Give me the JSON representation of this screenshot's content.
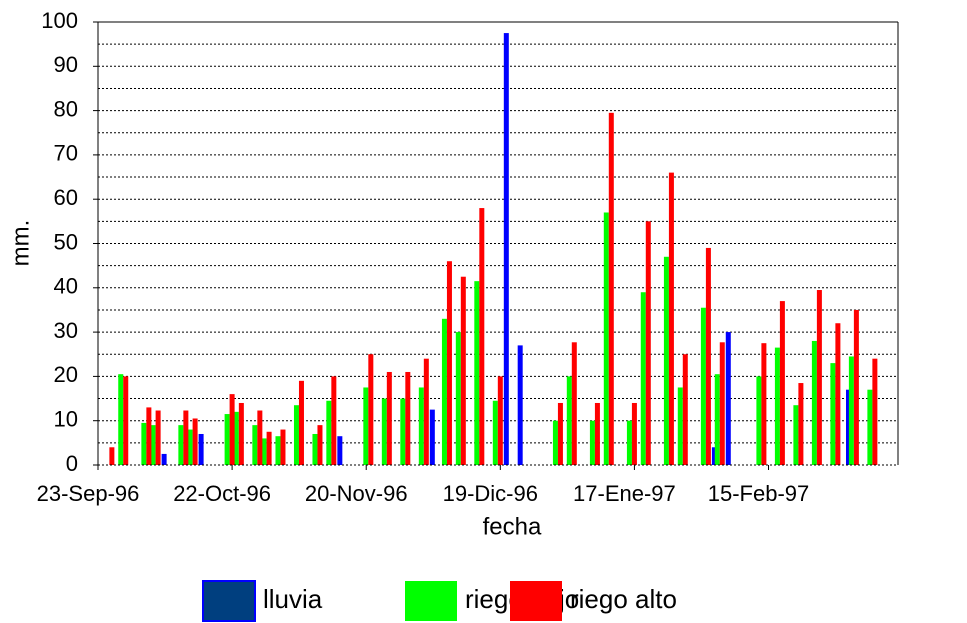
{
  "chart_data": {
    "type": "bar",
    "xlabel": "fecha",
    "ylabel": "mm.",
    "x": [
      "1996-09-26",
      "1996-09-29",
      "1996-10-04",
      "1996-10-06",
      "1996-10-12",
      "1996-10-14",
      "1996-10-22",
      "1996-10-24",
      "1996-10-28",
      "1996-10-30",
      "1996-11-02",
      "1996-11-06",
      "1996-11-10",
      "1996-11-13",
      "1996-11-21",
      "1996-11-25",
      "1996-11-29",
      "1996-12-03",
      "1996-12-08",
      "1996-12-11",
      "1996-12-15",
      "1996-12-19",
      "1996-12-22",
      "1997-01-01",
      "1997-01-04",
      "1997-01-09",
      "1997-01-12",
      "1997-01-17",
      "1997-01-20",
      "1997-01-25",
      "1997-01-28",
      "1997-02-02",
      "1997-02-05",
      "1997-02-14",
      "1997-02-18",
      "1997-02-22",
      "1997-02-26",
      "1997-03-02",
      "1997-03-03",
      "1997-03-06",
      "1997-03-10"
    ],
    "series": [
      {
        "name": "lluvia",
        "color": "#0000ff",
        "values": [
          null,
          null,
          null,
          2.5,
          null,
          7,
          null,
          null,
          null,
          null,
          null,
          null,
          null,
          6.5,
          null,
          null,
          null,
          12.5,
          null,
          null,
          null,
          97.5,
          27,
          null,
          null,
          null,
          null,
          null,
          null,
          null,
          null,
          4,
          30,
          null,
          null,
          null,
          null,
          null,
          17,
          null,
          null
        ]
      },
      {
        "name": "riego bajo",
        "color": "#00ff00",
        "values": [
          null,
          20.5,
          9.5,
          9,
          9,
          8,
          11.5,
          12,
          9,
          6,
          6.5,
          13.5,
          7,
          14.5,
          17.5,
          15,
          15,
          17.5,
          33,
          30,
          41.5,
          14.5,
          null,
          10,
          20,
          10,
          57,
          10,
          39,
          47,
          17.5,
          35.5,
          20.5,
          20,
          26.5,
          13.5,
          28,
          23,
          null,
          24.5,
          17
        ]
      },
      {
        "name": "riego alto",
        "color": "#ff0000",
        "values": [
          4,
          20,
          13,
          12.3,
          12.3,
          10.5,
          16,
          14,
          12.3,
          7.5,
          8,
          19,
          9,
          20,
          25,
          21,
          21,
          24,
          46,
          42.5,
          58,
          20,
          null,
          14,
          27.7,
          14,
          79.5,
          14,
          55,
          66,
          25,
          49,
          27.7,
          27.5,
          37,
          18.5,
          39.5,
          32,
          null,
          35,
          24
        ]
      }
    ],
    "xlim": [
      "1996-09-23",
      "1997-03-15"
    ],
    "xticks": [
      {
        "value": "1996-09-23",
        "label": "23-Sep-96"
      },
      {
        "value": "1996-10-22",
        "label": "22-Oct-96"
      },
      {
        "value": "1996-11-20",
        "label": "20-Nov-96"
      },
      {
        "value": "1996-12-19",
        "label": "19-Dic-96"
      },
      {
        "value": "1997-01-17",
        "label": "17-Ene-97"
      },
      {
        "value": "1997-02-15",
        "label": "15-Feb-97"
      }
    ],
    "ylim": [
      0,
      100
    ],
    "yticks": [
      0,
      10,
      20,
      30,
      40,
      50,
      60,
      70,
      80,
      90,
      100
    ],
    "yminor": [
      5,
      15,
      25,
      35,
      45,
      55,
      65,
      75,
      85,
      95
    ],
    "grid": true
  }
}
